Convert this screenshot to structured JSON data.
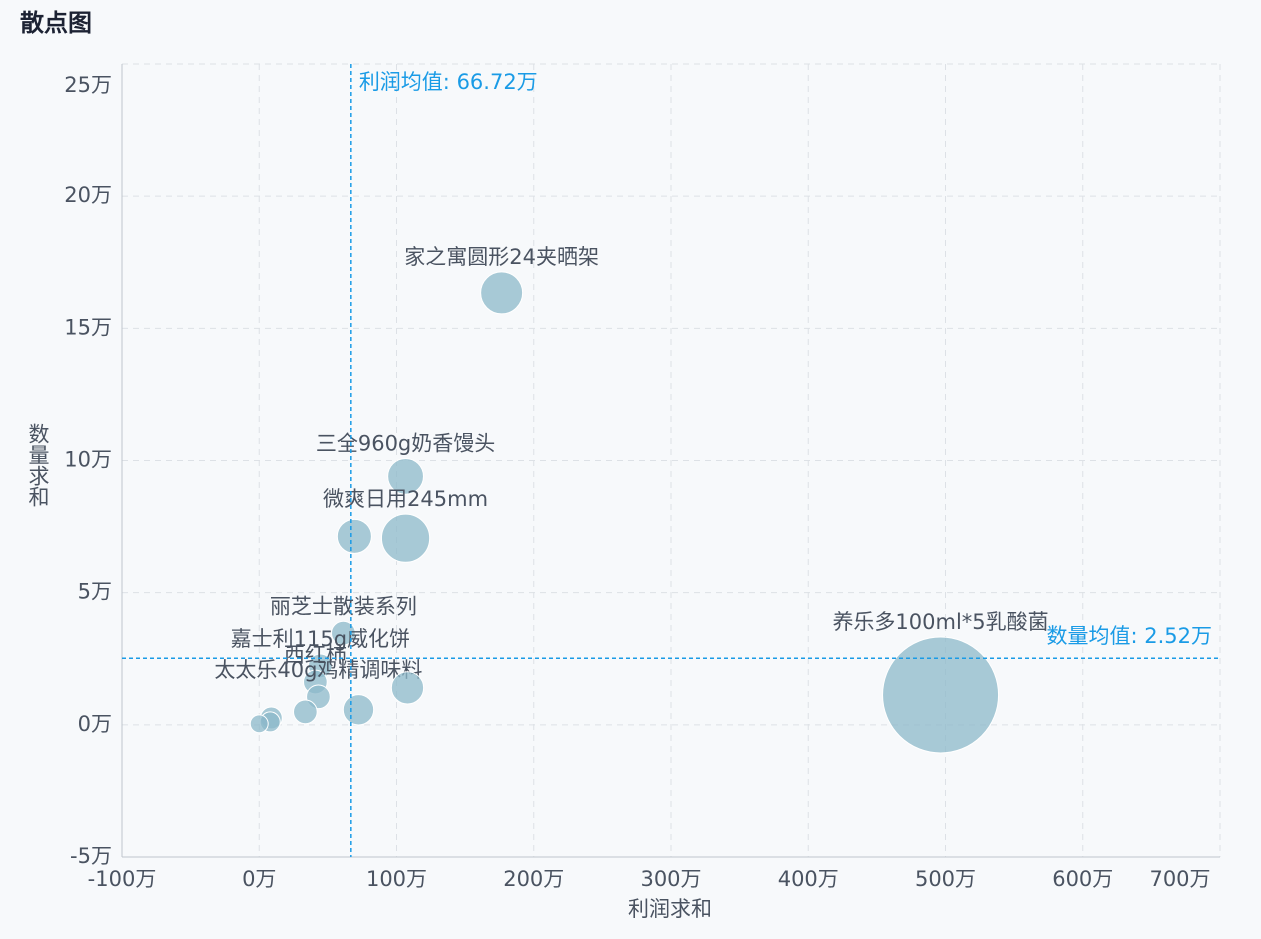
{
  "chart_data": {
    "type": "scatter",
    "title": "散点图",
    "x_label": "利润求和",
    "y_label": "数量求和",
    "xlim": [
      -1000000,
      7000000
    ],
    "xticks": [
      {
        "value": -1000000,
        "label": "-100万"
      },
      {
        "value": 0,
        "label": "0万"
      },
      {
        "value": 1000000,
        "label": "100万"
      },
      {
        "value": 2000000,
        "label": "200万"
      },
      {
        "value": 3000000,
        "label": "300万"
      },
      {
        "value": 4000000,
        "label": "400万"
      },
      {
        "value": 5000000,
        "label": "500万"
      },
      {
        "value": 6000000,
        "label": "600万"
      },
      {
        "value": 7000000,
        "label": "700万"
      }
    ],
    "ylim": [
      -50000,
      250000
    ],
    "yticks": [
      {
        "value": -50000,
        "label": "-5万"
      },
      {
        "value": 0,
        "label": "0万"
      },
      {
        "value": 50000,
        "label": "5万"
      },
      {
        "value": 100000,
        "label": "10万"
      },
      {
        "value": 150000,
        "label": "15万"
      },
      {
        "value": 200000,
        "label": "20万"
      },
      {
        "value": 250000,
        "label": "25万"
      }
    ],
    "grid": true,
    "series": [
      {
        "color": "#8cb8c9",
        "x": [
          1766000,
          1066000,
          1066000,
          693000,
          613000,
          445000,
          409000,
          431000,
          4964000,
          1080000,
          723000,
          336000,
          88000,
          80000,
          0
        ],
        "values": [
          163400,
          94000,
          70600,
          71300,
          34700,
          22300,
          16200,
          10600,
          11300,
          14000,
          5700,
          4900,
          2600,
          1100,
          400
        ],
        "sizes": [
          44,
          32,
          58,
          29,
          14,
          14,
          14,
          14,
          336,
          26,
          23,
          14,
          12,
          10,
          8
        ],
        "labels": [
          "家之寓圆形24夹晒架",
          "三全960g奶香馒头",
          "微爽日用245mm",
          null,
          "丽芝士散装系列",
          "嘉士利115g威化饼",
          "西红柿",
          "太太乐40g鸡精调味料",
          "养乐多100ml*5乳酸菌",
          null,
          null,
          null,
          null,
          null,
          null
        ]
      }
    ],
    "annotations": [
      {
        "text": "利润均值: 66.72万",
        "axis": "x",
        "value": 667200,
        "color": "#1a9be6"
      },
      {
        "text": "数量均值: 2.52万",
        "axis": "y",
        "value": 25200,
        "color": "#1a9be6"
      }
    ]
  }
}
